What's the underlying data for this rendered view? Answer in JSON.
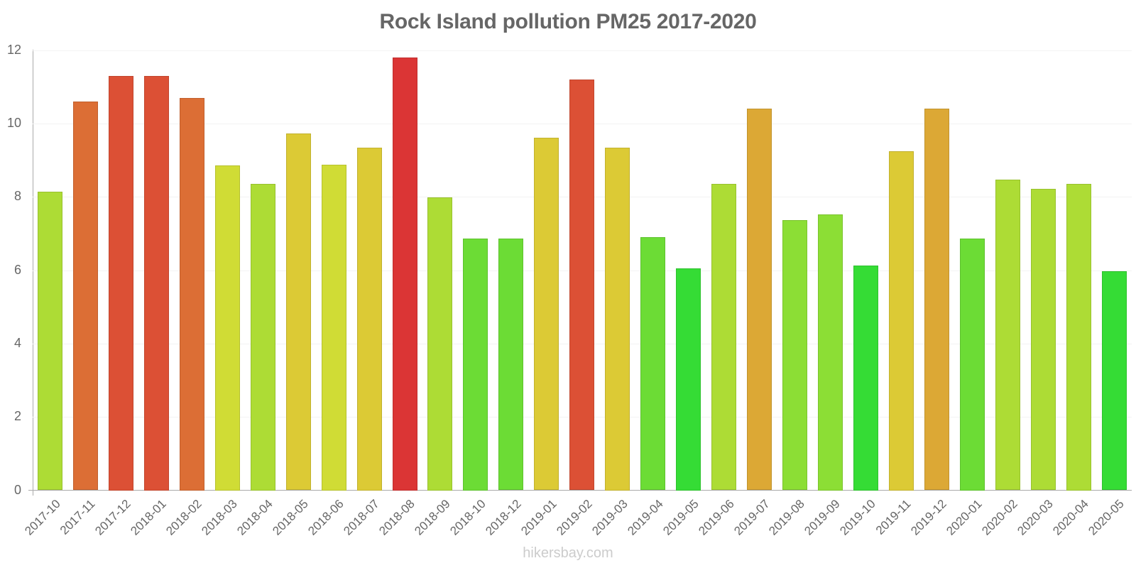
{
  "title": "Rock Island pollution PM25 2017-2020",
  "footer": "hikersbay.com",
  "chart_data": {
    "type": "bar",
    "title": "Rock Island pollution PM25 2017-2020",
    "xlabel": "",
    "ylabel": "",
    "ylim": [
      0,
      12
    ],
    "yticks": [
      0,
      2,
      4,
      6,
      8,
      10,
      12
    ],
    "grid": true,
    "legend": null,
    "categories": [
      "2017-10",
      "2017-11",
      "2017-12",
      "2018-01",
      "2018-02",
      "2018-03",
      "2018-04",
      "2018-05",
      "2018-06",
      "2018-07",
      "2018-08",
      "2018-09",
      "2018-10",
      "2018-12",
      "2019-01",
      "2019-02",
      "2019-03",
      "2019-04",
      "2019-05",
      "2019-06",
      "2019-07",
      "2019-08",
      "2019-09",
      "2019-10",
      "2019-11",
      "2019-12",
      "2020-01",
      "2020-02",
      "2020-03",
      "2020-04",
      "2020-05"
    ],
    "values": [
      8.14,
      10.6,
      11.3,
      11.3,
      10.7,
      8.86,
      8.36,
      9.72,
      8.88,
      9.35,
      11.81,
      7.99,
      6.87,
      6.86,
      9.61,
      11.2,
      9.35,
      6.9,
      6.06,
      8.35,
      10.4,
      7.36,
      7.53,
      6.13,
      9.25,
      10.4,
      6.87,
      8.47,
      8.21,
      8.36,
      5.97
    ],
    "colors": [
      "#ADDC35",
      "#DC6E35",
      "#DC5035",
      "#DC5035",
      "#DC6E35",
      "#D0DC35",
      "#ADDC35",
      "#DCCA35",
      "#D0DC35",
      "#DCCA35",
      "#DB3535",
      "#ADDC35",
      "#6CDC35",
      "#6CDC35",
      "#DCCA35",
      "#DC5035",
      "#DCCA35",
      "#6CDC35",
      "#35DC35",
      "#ADDC35",
      "#DCA835",
      "#8CDE35",
      "#8CDE35",
      "#35DC35",
      "#DCCA35",
      "#DCA835",
      "#6CDC35",
      "#ADDC35",
      "#ADDC35",
      "#ADDC35",
      "#35DC35"
    ]
  }
}
